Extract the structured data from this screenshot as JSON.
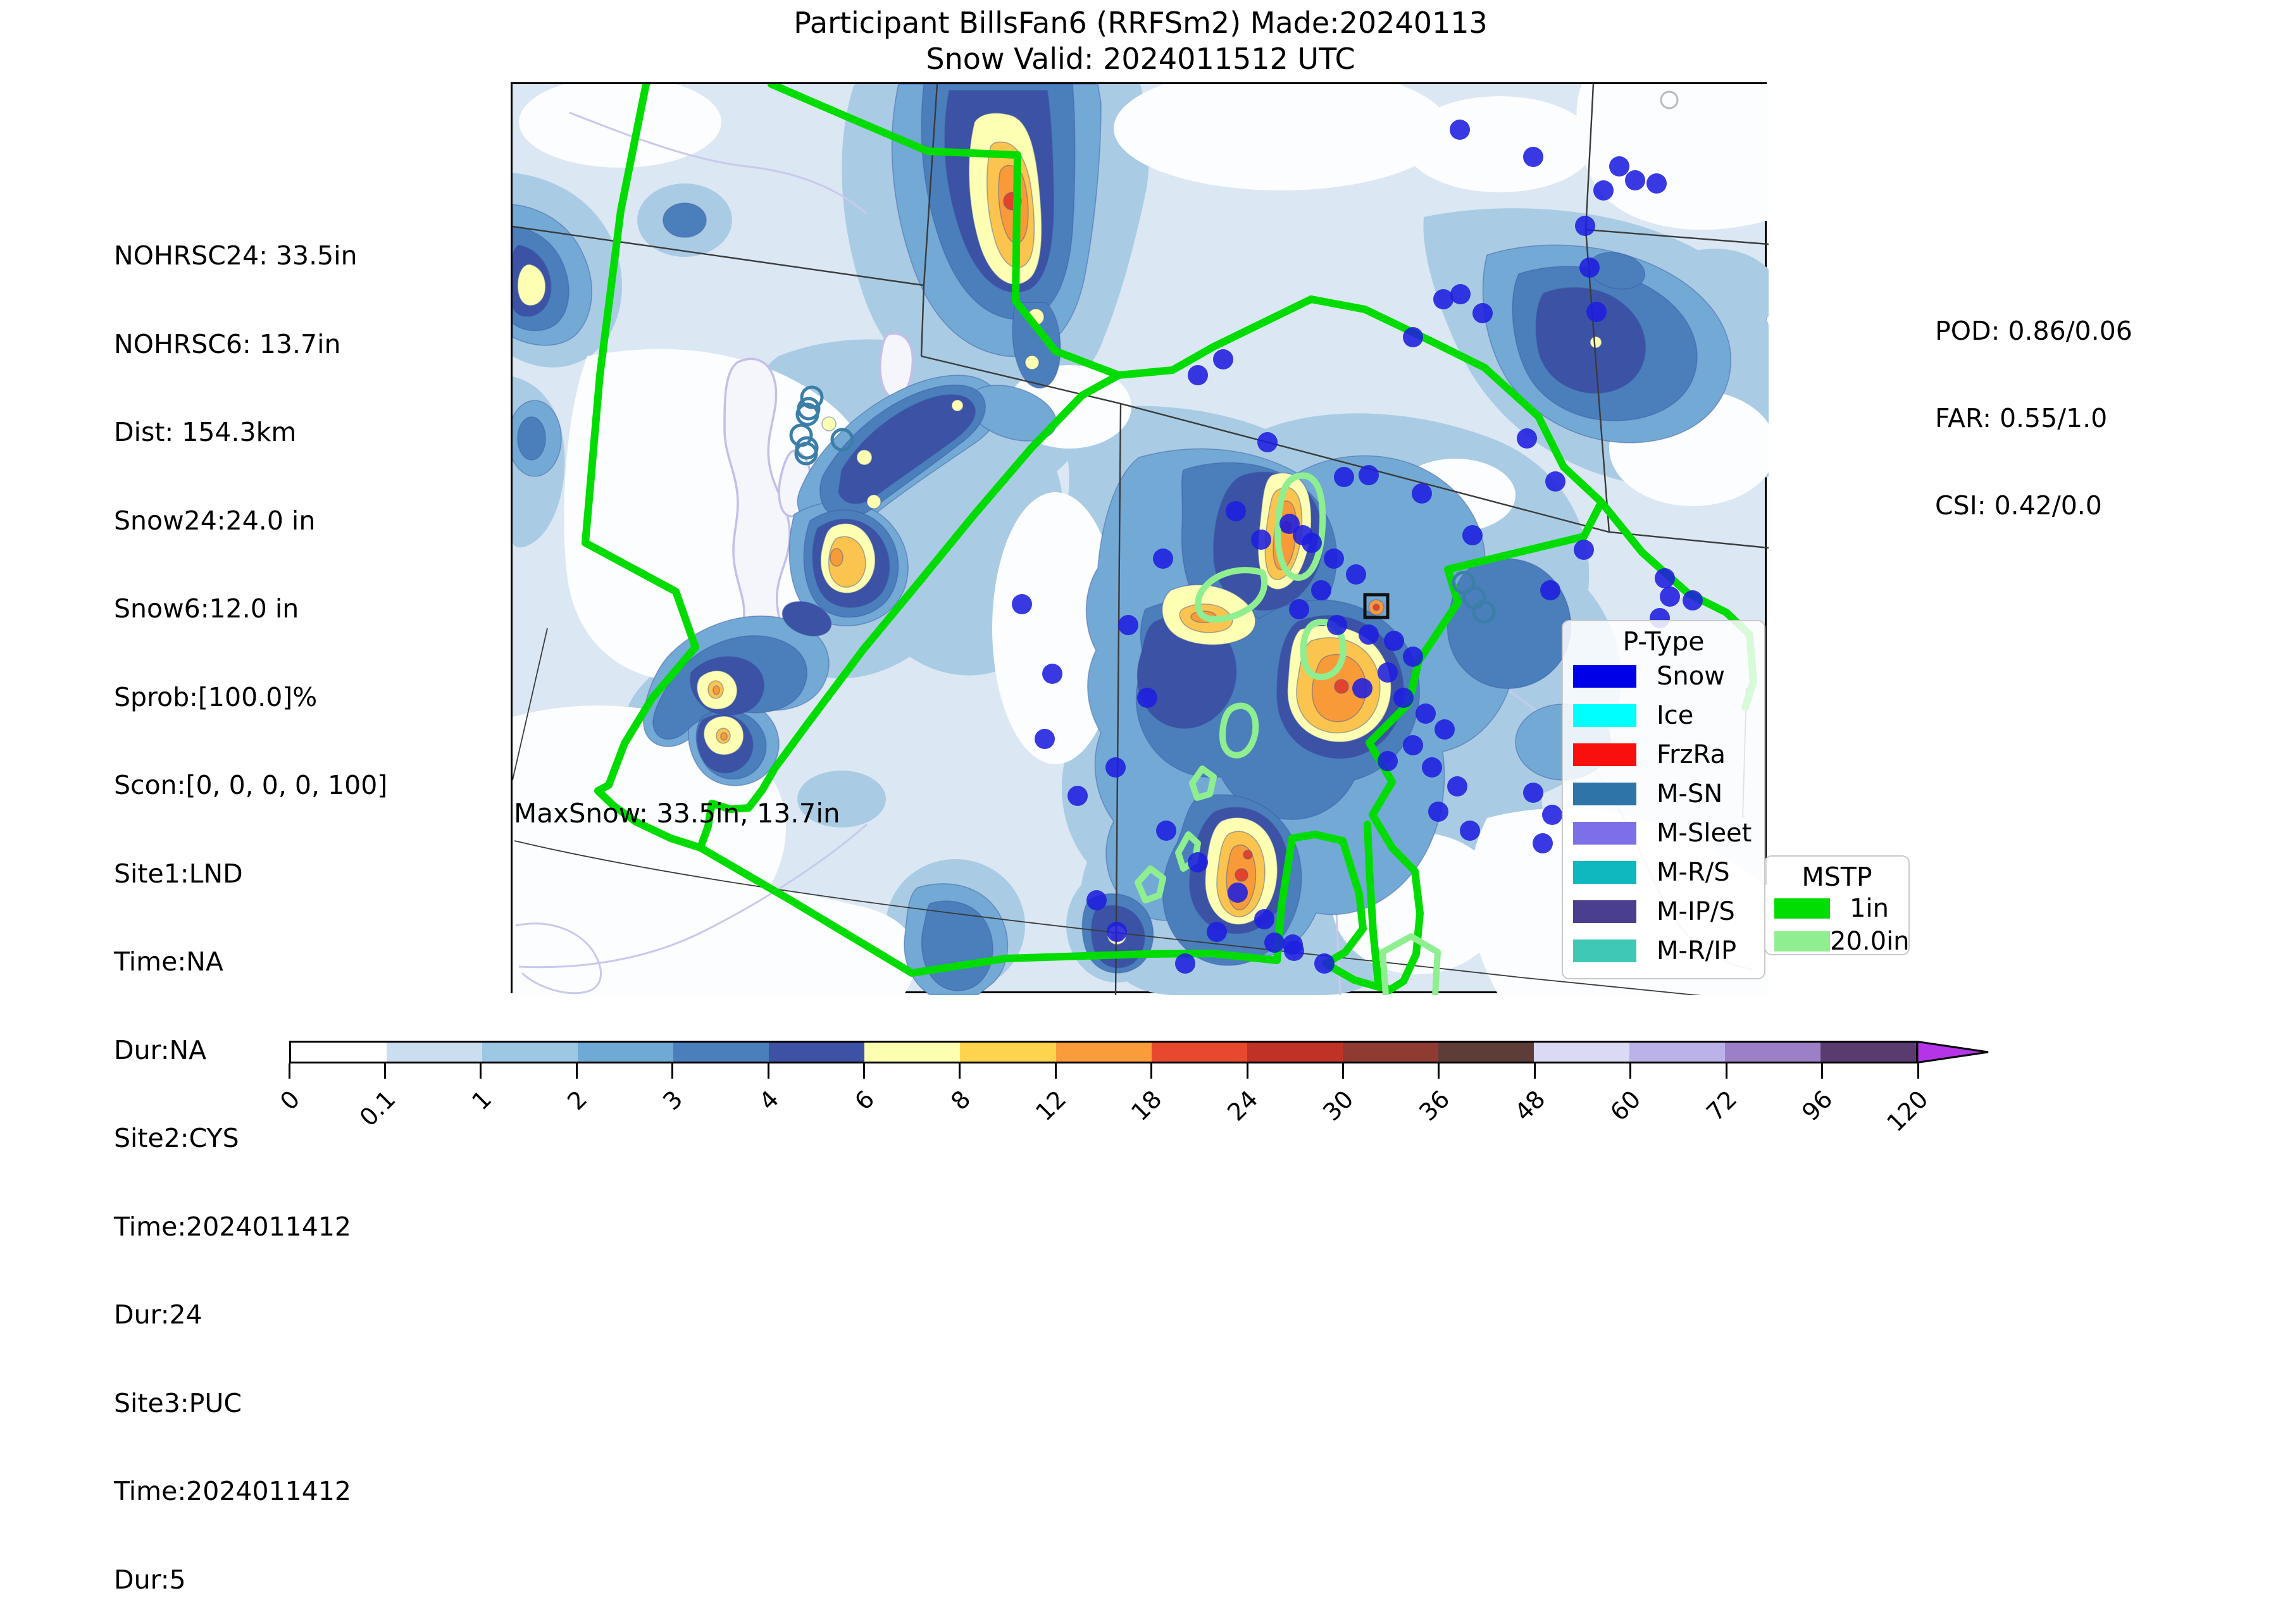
{
  "title": {
    "line1": "Participant BillsFan6 (RRFSm2) Made:20240113",
    "line2": "Snow Valid: 2024011512 UTC"
  },
  "stats_left": {
    "lines": [
      "NOHRSC24: 33.5in",
      "NOHRSC6: 13.7in",
      "Dist: 154.3km",
      "Snow24:24.0 in",
      "Snow6:12.0 in",
      "Sprob:[100.0]%",
      "Scon:[0, 0, 0, 0, 100]",
      "Site1:LND",
      "Time:NA",
      "Dur:NA",
      "Site2:CYS",
      "Time:2024011412",
      "Dur:24",
      "Site3:PUC",
      "Time:2024011412",
      "Dur:5"
    ]
  },
  "stats_right": {
    "lines": [
      "POD: 0.86/0.06",
      "FAR: 0.55/1.0",
      "CSI: 0.42/0.0"
    ]
  },
  "map_annotation": "MaxSnow: 33.5in, 13.7in",
  "legend_ptype": {
    "title": "P-Type",
    "entries": [
      {
        "label": "Snow",
        "color": "#0000E8"
      },
      {
        "label": "Ice",
        "color": "#00FFFF"
      },
      {
        "label": "FrzRa",
        "color": "#FA0F0F"
      },
      {
        "label": "M-SN",
        "color": "#2E74A8"
      },
      {
        "label": "M-Sleet",
        "color": "#7D6FE8"
      },
      {
        "label": "M-R/S",
        "color": "#0FB8BE"
      },
      {
        "label": "M-IP/S",
        "color": "#4A3F8F"
      },
      {
        "label": "M-R/IP",
        "color": "#3FC9B4"
      }
    ]
  },
  "legend_mstp": {
    "title": "MSTP",
    "entries": [
      {
        "label": "1in",
        "color": "#00DD00"
      },
      {
        "label": "20.0in",
        "color": "#90EE90"
      }
    ]
  },
  "colorbar": {
    "units": "in",
    "ticks": [
      "0",
      "0.1",
      "1",
      "2",
      "3",
      "4",
      "6",
      "8",
      "12",
      "18",
      "24",
      "30",
      "36",
      "48",
      "60",
      "72",
      "96",
      "120"
    ],
    "boundaries_in": [
      0,
      0.1,
      1,
      2,
      3,
      4,
      6,
      8,
      12,
      18,
      24,
      30,
      36,
      48,
      60,
      72,
      96,
      120
    ],
    "colors": [
      "#FFFFFF",
      "#CBDEF0",
      "#9CC8E4",
      "#6FAAD6",
      "#4A7FBC",
      "#3D51A5",
      "#FDFFB0",
      "#FED44F",
      "#FA9C3A",
      "#E8492E",
      "#C03226",
      "#8F3B31",
      "#5E3C38",
      "#DBDAF5",
      "#BBB2E9",
      "#9C80C7",
      "#5A3B70"
    ],
    "arrow_color": "#B434E8"
  },
  "map": {
    "snow_dot_color": "#1E1EDF",
    "snow_dots": [
      [
        1497,
        72
      ],
      [
        1613,
        115
      ],
      [
        1749,
        130
      ],
      [
        1774,
        152
      ],
      [
        1808,
        157
      ],
      [
        1724,
        168
      ],
      [
        1695,
        224
      ],
      [
        1702,
        290
      ],
      [
        1713,
        360
      ],
      [
        1471,
        340
      ],
      [
        1498,
        332
      ],
      [
        1533,
        362
      ],
      [
        1423,
        400
      ],
      [
        1123,
        435
      ],
      [
        1083,
        460
      ],
      [
        1603,
        560
      ],
      [
        1648,
        628
      ],
      [
        1693,
        736
      ],
      [
        1821,
        781
      ],
      [
        1829,
        810
      ],
      [
        1865,
        816
      ],
      [
        1813,
        844
      ],
      [
        1640,
        800
      ],
      [
        1613,
        1120
      ],
      [
        1643,
        1155
      ],
      [
        1628,
        1200
      ],
      [
        1193,
        566
      ],
      [
        1249,
        713
      ],
      [
        1314,
        621
      ],
      [
        1353,
        618
      ],
      [
        1437,
        647
      ],
      [
        1517,
        713
      ],
      [
        1143,
        675
      ],
      [
        1183,
        720
      ],
      [
        1228,
        695
      ],
      [
        1263,
        725
      ],
      [
        1298,
        750
      ],
      [
        1333,
        775
      ],
      [
        1278,
        800
      ],
      [
        1243,
        830
      ],
      [
        1303,
        855
      ],
      [
        1353,
        870
      ],
      [
        1393,
        880
      ],
      [
        1423,
        905
      ],
      [
        1383,
        930
      ],
      [
        1343,
        955
      ],
      [
        1408,
        970
      ],
      [
        1443,
        995
      ],
      [
        1473,
        1020
      ],
      [
        1423,
        1045
      ],
      [
        1383,
        1070
      ],
      [
        1453,
        1080
      ],
      [
        1493,
        1110
      ],
      [
        1463,
        1150
      ],
      [
        1513,
        1180
      ],
      [
        1028,
        750
      ],
      [
        973,
        855
      ],
      [
        1003,
        970
      ],
      [
        953,
        1080
      ],
      [
        1033,
        1180
      ],
      [
        1083,
        1230
      ],
      [
        1146,
        1278
      ],
      [
        1188,
        1320
      ],
      [
        1233,
        1360
      ],
      [
        1283,
        1390
      ],
      [
        1113,
        1340
      ],
      [
        1063,
        1390
      ],
      [
        805,
        822
      ],
      [
        853,
        932
      ],
      [
        841,
        1035
      ],
      [
        893,
        1125
      ],
      [
        923,
        1290
      ],
      [
        955,
        1340
      ],
      [
        1204,
        1357
      ],
      [
        1235,
        1370
      ]
    ],
    "msn_circle_markers": [
      [
        473,
        495
      ],
      [
        468,
        513
      ],
      [
        466,
        522
      ],
      [
        456,
        555
      ],
      [
        465,
        575
      ],
      [
        464,
        584
      ],
      [
        521,
        562
      ],
      [
        1503,
        788
      ],
      [
        1520,
        812
      ],
      [
        1535,
        834
      ]
    ],
    "station_marker_box": [
      1347,
      807,
      36,
      36
    ]
  }
}
